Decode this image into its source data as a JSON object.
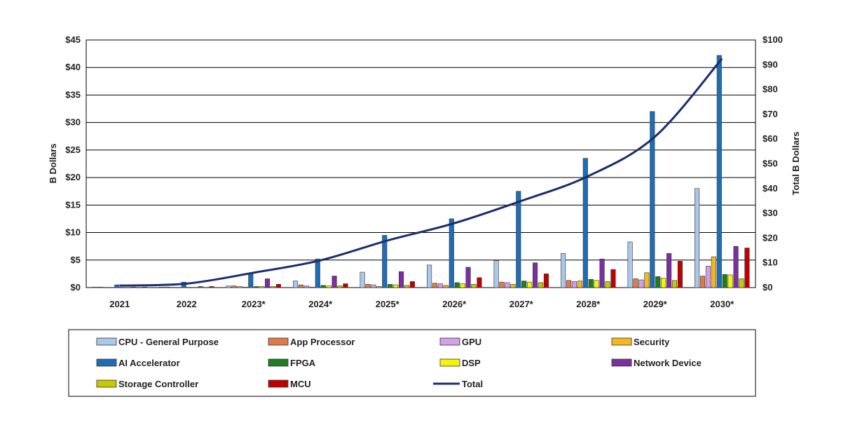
{
  "chart_data": {
    "type": "bar",
    "title": "",
    "xlabel": "",
    "ylabel": "B Dollars",
    "y2label": "Total B Dollars",
    "ylim": [
      0,
      45
    ],
    "y2lim": [
      0,
      100
    ],
    "y_ticks": [
      "$0",
      "$5",
      "$10",
      "$15",
      "$20",
      "$25",
      "$30",
      "$35",
      "$40",
      "$45"
    ],
    "y2_ticks": [
      "$0",
      "$10",
      "$20",
      "$30",
      "$40",
      "$50",
      "$60",
      "$70",
      "$80",
      "$90",
      "$100"
    ],
    "categories": [
      "2021",
      "2022",
      "2023*",
      "2024*",
      "2025*",
      "2026*",
      "2027*",
      "2028*",
      "2029*",
      "2030*"
    ],
    "legend_position": "bottom",
    "grid": true,
    "series": [
      {
        "name": "CPU - General Purpose",
        "color": "#a9c8ea",
        "values": [
          0.1,
          0.1,
          0.3,
          1.2,
          2.8,
          4.1,
          4.9,
          6.2,
          8.3,
          18.0
        ]
      },
      {
        "name": "App Processor",
        "color": "#e07b45",
        "values": [
          0.1,
          0.1,
          0.3,
          0.5,
          0.6,
          0.8,
          1.0,
          1.3,
          1.6,
          2.1
        ]
      },
      {
        "name": "GPU",
        "color": "#d4a0e8",
        "values": [
          0.05,
          0.05,
          0.2,
          0.3,
          0.5,
          0.7,
          0.9,
          1.1,
          1.4,
          3.9
        ]
      },
      {
        "name": "Security",
        "color": "#f5b820",
        "values": [
          0.05,
          0.05,
          0.1,
          0.1,
          0.2,
          0.4,
          0.6,
          1.2,
          2.7,
          5.6
        ]
      },
      {
        "name": "AI Accelerator",
        "color": "#1f6db5",
        "values": [
          0.5,
          1.0,
          2.5,
          5.2,
          9.5,
          12.5,
          17.5,
          23.5,
          32.0,
          42.2
        ]
      },
      {
        "name": "FPGA",
        "color": "#1e7d1e",
        "values": [
          0.05,
          0.05,
          0.2,
          0.4,
          0.6,
          0.9,
          1.2,
          1.5,
          2.0,
          2.4
        ]
      },
      {
        "name": "DSP",
        "color": "#f5f500",
        "values": [
          0.05,
          0.05,
          0.2,
          0.3,
          0.5,
          0.7,
          1.0,
          1.3,
          1.7,
          2.3
        ]
      },
      {
        "name": "Network Device",
        "color": "#7b2fa0",
        "values": [
          0.1,
          0.2,
          1.6,
          2.1,
          2.9,
          3.7,
          4.5,
          5.2,
          6.2,
          7.5
        ]
      },
      {
        "name": "Storage Controller",
        "color": "#c8c800",
        "values": [
          0.05,
          0.05,
          0.2,
          0.3,
          0.4,
          0.6,
          0.9,
          1.1,
          1.3,
          1.6
        ]
      },
      {
        "name": "MCU",
        "color": "#c00000",
        "values": [
          0.1,
          0.2,
          0.6,
          0.7,
          1.1,
          1.8,
          2.5,
          3.3,
          4.8,
          7.2
        ]
      }
    ],
    "total": {
      "name": "Total",
      "color": "#1a2e6e",
      "values": [
        0.8,
        1.6,
        6.0,
        11.0,
        19.0,
        26.0,
        35.0,
        45.0,
        61.0,
        92.5
      ]
    },
    "legend": [
      {
        "name": "CPU - General Purpose",
        "kind": "box",
        "color": "#a9c8ea"
      },
      {
        "name": "App Processor",
        "kind": "box",
        "color": "#e07b45"
      },
      {
        "name": "GPU",
        "kind": "box",
        "color": "#d4a0e8"
      },
      {
        "name": "Security",
        "kind": "box",
        "color": "#f5b820"
      },
      {
        "name": "AI Accelerator",
        "kind": "box",
        "color": "#1f6db5"
      },
      {
        "name": "FPGA",
        "kind": "box",
        "color": "#1e7d1e"
      },
      {
        "name": "DSP",
        "kind": "box",
        "color": "#f5f500"
      },
      {
        "name": "Network Device",
        "kind": "box",
        "color": "#7b2fa0"
      },
      {
        "name": "Storage Controller",
        "kind": "box",
        "color": "#c8c800"
      },
      {
        "name": "MCU",
        "kind": "box",
        "color": "#c00000"
      },
      {
        "name": "Total",
        "kind": "line",
        "color": "#1a2e6e"
      }
    ]
  }
}
